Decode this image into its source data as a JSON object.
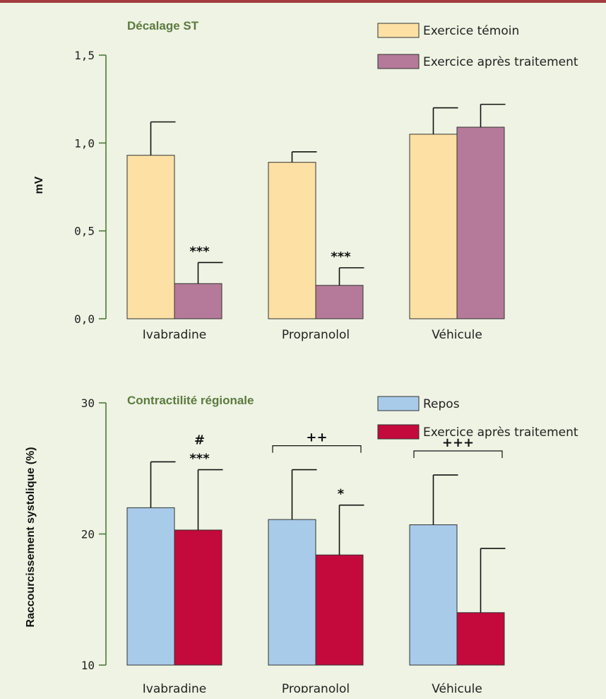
{
  "chart_data": [
    {
      "type": "bar",
      "title": "Décalage ST",
      "ylabel": "mV",
      "xlabel": "",
      "ylim": [
        0,
        1.5
      ],
      "yticks": [
        "0,0",
        "0,5",
        "1,0",
        "1,5"
      ],
      "ytick_values": [
        0,
        0.5,
        1.0,
        1.5
      ],
      "categories": [
        "Ivabradine",
        "Propranolol",
        "Véhicule"
      ],
      "series": [
        {
          "name": "Exercice témoin",
          "color": "#fde0a3",
          "values": [
            0.93,
            0.89,
            1.05
          ],
          "error": [
            0.19,
            0.06,
            0.15
          ]
        },
        {
          "name": "Exercice après traitement",
          "color": "#b57a99",
          "values": [
            0.2,
            0.19,
            1.09
          ],
          "error": [
            0.12,
            0.1,
            0.13
          ]
        }
      ],
      "annotations": [
        {
          "category": 0,
          "series": 1,
          "text": "***"
        },
        {
          "category": 1,
          "series": 1,
          "text": "***"
        }
      ],
      "brackets": [],
      "legend_position": "top-right",
      "grid": false
    },
    {
      "type": "bar",
      "title": "Contractilité régionale",
      "ylabel": "Raccourcissement systolique (%)",
      "xlabel": "",
      "ylim": [
        10,
        30
      ],
      "yticks": [
        "10",
        "20",
        "30"
      ],
      "ytick_values": [
        10,
        20,
        30
      ],
      "categories": [
        "Ivabradine",
        "Propranolol",
        "Véhicule"
      ],
      "series": [
        {
          "name": "Repos",
          "color": "#a9cbea",
          "values": [
            22.0,
            21.1,
            20.7
          ],
          "error": [
            3.5,
            3.8,
            3.8
          ]
        },
        {
          "name": "Exercice après traitement",
          "color": "#c4093c",
          "values": [
            20.3,
            18.4,
            14.0
          ],
          "error": [
            4.6,
            3.8,
            4.9
          ]
        }
      ],
      "annotations": [
        {
          "category": 0,
          "series": 1,
          "text": "***"
        },
        {
          "category": 0,
          "series": 1,
          "text": "#"
        },
        {
          "category": 1,
          "series": 1,
          "text": "*"
        }
      ],
      "brackets": [
        {
          "category": 1,
          "text": "++"
        },
        {
          "category": 2,
          "text": "+++"
        }
      ],
      "legend_position": "top-right",
      "grid": false
    }
  ]
}
